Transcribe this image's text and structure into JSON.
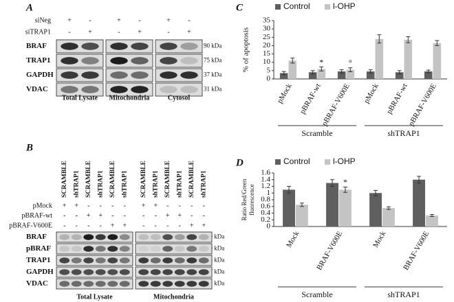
{
  "panels": {
    "A": {
      "label": "A",
      "rows": [
        {
          "name": "siNeg",
          "signs": [
            "+",
            "-",
            "+",
            "-",
            "+",
            "-"
          ]
        },
        {
          "name": "siTRAP1",
          "signs": [
            "-",
            "+",
            "-",
            "+",
            "-",
            "+"
          ]
        }
      ],
      "blots": [
        {
          "name": "BRAF",
          "size": "90 kDa"
        },
        {
          "name": "TRAP1",
          "size": "75 kDa"
        },
        {
          "name": "GAPDH",
          "size": "37 kDa"
        },
        {
          "name": "VDAC",
          "size": "31 kDa"
        }
      ],
      "groups": [
        "Total Lysate",
        "Mitochondria",
        "Cytosol"
      ]
    },
    "B": {
      "label": "B",
      "lanes": [
        "SCRAMBLE",
        "shTRAP1",
        "SCRAMBLE",
        "shTRAP1",
        "SCRAMBLE",
        "shTRAP1",
        "SCRAMBLE",
        "shTRAP1",
        "SCRAMBLE",
        "shTRAP1",
        "SCRAMBLE",
        "shTRAP1"
      ],
      "rows": [
        {
          "name": "pMock",
          "signs": [
            "+",
            "+",
            "-",
            "-",
            "-",
            "-",
            "+",
            "+",
            "-",
            "-",
            "-",
            "-"
          ]
        },
        {
          "name": "pBRAF-wt",
          "signs": [
            "-",
            "-",
            "+",
            "+",
            "-",
            "-",
            "-",
            "-",
            "+",
            "+",
            "-",
            "-"
          ]
        },
        {
          "name": "pBRAF-V600E",
          "signs": [
            "-",
            "-",
            "-",
            "-",
            "+",
            "+",
            "-",
            "-",
            "-",
            "-",
            "+",
            "+"
          ]
        }
      ],
      "blots": [
        {
          "name": "BRAF",
          "size": "90 kDa"
        },
        {
          "name": "pBRAF",
          "size": "90 kDa"
        },
        {
          "name": "TRAP1",
          "size": "75 kDa"
        },
        {
          "name": "GAPDH",
          "size": "37 kDa"
        },
        {
          "name": "VDAC",
          "size": "31 kDa"
        }
      ],
      "groups": [
        "Total Lysate",
        "Mitochondria"
      ]
    }
  },
  "chart_data": [
    {
      "type": "bar",
      "label": "C",
      "ylabel": [
        "% of apoptosis"
      ],
      "categories": [
        "pMock",
        "pBRAF-wt",
        "pBRAF-V600E",
        "pMock",
        "pBRAF-wt",
        "pBRAF-V600E"
      ],
      "group_labels": [
        "Scramble",
        "shTRAP1"
      ],
      "series": [
        {
          "name": "Control",
          "color": "#5f5f5f",
          "values": [
            3.5,
            4,
            4.5,
            4.5,
            4,
            4.5
          ],
          "errors": [
            1,
            1,
            1,
            1,
            1,
            0.8
          ],
          "markers": [
            null,
            null,
            null,
            null,
            null,
            null
          ]
        },
        {
          "name": "l-OHP",
          "color": "#c4c4c4",
          "values": [
            11,
            6,
            5.5,
            24,
            23.5,
            21.5
          ],
          "errors": [
            1.5,
            1.2,
            1.2,
            2.5,
            1.8,
            1.5
          ],
          "markers": [
            null,
            "*",
            "°",
            null,
            null,
            null
          ]
        }
      ],
      "ylim": [
        0,
        35
      ],
      "yticks": [
        0,
        5,
        10,
        15,
        20,
        25,
        30,
        35
      ]
    },
    {
      "type": "bar",
      "label": "D",
      "ylabel": [
        "Ratio Red/Green",
        "fluorescence"
      ],
      "categories": [
        "Mock",
        "BRAF-V600E",
        "Mock",
        "BRAF-V600E"
      ],
      "group_labels": [
        "Scramble",
        "shTRAP1"
      ],
      "series": [
        {
          "name": "Control",
          "color": "#5f5f5f",
          "values": [
            1.1,
            1.3,
            1.0,
            1.4
          ],
          "errors": [
            0.1,
            0.1,
            0.08,
            0.1
          ],
          "markers": [
            null,
            null,
            null,
            null
          ]
        },
        {
          "name": "l-OHP",
          "color": "#c4c4c4",
          "values": [
            0.65,
            1.1,
            0.55,
            0.33
          ],
          "errors": [
            0.05,
            0.08,
            0.04,
            0.03
          ],
          "markers": [
            null,
            "*",
            null,
            null
          ]
        }
      ],
      "ylim": [
        0,
        1.6
      ],
      "yticks": [
        0,
        0.2,
        0.4,
        0.6,
        0.8,
        1,
        1.2,
        1.4,
        1.6
      ]
    }
  ]
}
